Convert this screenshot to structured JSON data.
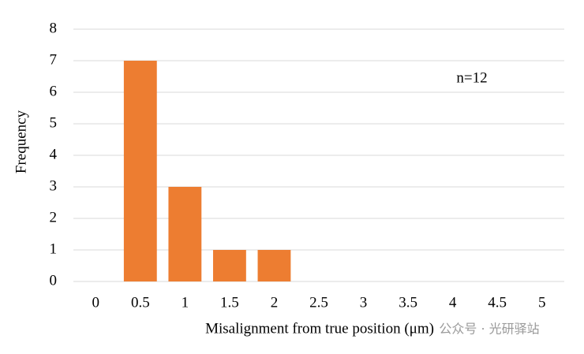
{
  "chart_data": {
    "type": "bar",
    "categories": [
      "0",
      "0.5",
      "1",
      "1.5",
      "2",
      "2.5",
      "3",
      "3.5",
      "4",
      "4.5",
      "5"
    ],
    "values": [
      0,
      7,
      3,
      1,
      1,
      0,
      0,
      0,
      0,
      0,
      0
    ],
    "color": "#ed7d31",
    "x_label": "Misalignment  from true position (μm)",
    "y_label": "Frequency",
    "annotation": "n=12",
    "watermark": "公众号 · 光研驿站",
    "ylim": [
      0,
      8
    ],
    "yticks": [
      0,
      1,
      2,
      3,
      4,
      5,
      6,
      7,
      8
    ],
    "grid": true
  }
}
